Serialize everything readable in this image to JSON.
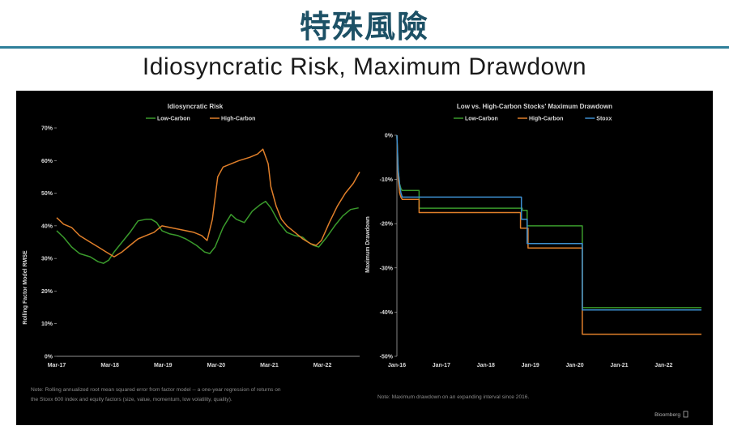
{
  "header": {
    "title": "特殊風險",
    "subtitle": "Idiosyncratic Risk, Maximum Drawdown"
  },
  "footer": {
    "note_left_line1": "Note: Rolling annualized root mean squared error from factor model -- a one-year regression of returns on",
    "note_left_line2": "the Stoxx 600 index and equity factors (size, value, momentum, low volatility, quality).",
    "note_right": "Note: Maximum drawdown on an expanding interval since 2016.",
    "source": "Bloomberg"
  },
  "colors": {
    "low_carbon": "#3a9a2c",
    "high_carbon": "#e07f2a",
    "stoxx": "#3d8fd0",
    "background": "#000000",
    "text": "#d9d9d9"
  },
  "chart_data": [
    {
      "type": "line",
      "title": "Idiosyncratic Risk",
      "ylabel": "Rolling Factor Model RMSE",
      "xlabel": "",
      "ylim": [
        0,
        70
      ],
      "xlim": [
        2017.17,
        2022.87
      ],
      "y_ticks": [
        "0%",
        "10%",
        "20%",
        "30%",
        "40%",
        "50%",
        "60%",
        "70%"
      ],
      "x_ticks": [
        {
          "label": "Mar-17",
          "x": 2017.17
        },
        {
          "label": "Mar-18",
          "x": 2018.17
        },
        {
          "label": "Mar-19",
          "x": 2019.17
        },
        {
          "label": "Mar-20",
          "x": 2020.17
        },
        {
          "label": "Mar-21",
          "x": 2021.17
        },
        {
          "label": "Mar-22",
          "x": 2022.17
        }
      ],
      "legend_position": "top-center",
      "grid": false,
      "series": [
        {
          "name": "Low-Carbon",
          "color_key": "low_carbon",
          "x": [
            2017.17,
            2017.3,
            2017.45,
            2017.6,
            2017.8,
            2017.95,
            2018.05,
            2018.15,
            2018.25,
            2018.4,
            2018.55,
            2018.7,
            2018.85,
            2018.95,
            2019.05,
            2019.15,
            2019.3,
            2019.45,
            2019.6,
            2019.8,
            2019.95,
            2020.05,
            2020.15,
            2020.3,
            2020.45,
            2020.55,
            2020.7,
            2020.85,
            2021.0,
            2021.1,
            2021.2,
            2021.35,
            2021.5,
            2021.65,
            2021.8,
            2021.9,
            2022.0,
            2022.1,
            2022.25,
            2022.4,
            2022.55,
            2022.7,
            2022.85
          ],
          "y": [
            38.5,
            36.5,
            33.5,
            31.5,
            30.5,
            29,
            28.5,
            29.5,
            32,
            35,
            38,
            41.5,
            42,
            42,
            41,
            38.5,
            37.5,
            37,
            36,
            34,
            32,
            31.5,
            33.5,
            39.5,
            43.5,
            42,
            41,
            44.5,
            46.5,
            47.5,
            45.5,
            41,
            38,
            37,
            36.5,
            35,
            34,
            33.5,
            36.5,
            40,
            43,
            45,
            45.5
          ]
        },
        {
          "name": "High-Carbon",
          "color_key": "high_carbon",
          "x": [
            2017.17,
            2017.3,
            2017.45,
            2017.6,
            2017.8,
            2017.95,
            2018.1,
            2018.25,
            2018.4,
            2018.55,
            2018.7,
            2018.85,
            2019.0,
            2019.15,
            2019.3,
            2019.45,
            2019.6,
            2019.75,
            2019.9,
            2020.0,
            2020.1,
            2020.2,
            2020.3,
            2020.45,
            2020.6,
            2020.8,
            2020.95,
            2021.05,
            2021.15,
            2021.2,
            2021.3,
            2021.4,
            2021.5,
            2021.65,
            2021.8,
            2021.95,
            2022.05,
            2022.15,
            2022.3,
            2022.45,
            2022.6,
            2022.75,
            2022.87
          ],
          "y": [
            42.5,
            40.5,
            39.5,
            37,
            35,
            33.5,
            32,
            30.5,
            32,
            34,
            36,
            37,
            38,
            40,
            39.5,
            39,
            38.5,
            38,
            37,
            35.5,
            42,
            55,
            58,
            59,
            60,
            61,
            62,
            63.5,
            59,
            52,
            46,
            42,
            40,
            38,
            36,
            34.5,
            34,
            35.5,
            41,
            46,
            50,
            53,
            56.5
          ]
        }
      ]
    },
    {
      "type": "line",
      "title": "Low vs. High-Carbon Stocks' Maximum Drawdown",
      "ylabel": "Maximum Drawdown",
      "xlabel": "",
      "ylim": [
        -50,
        0
      ],
      "xlim": [
        2016.0,
        2022.85
      ],
      "y_ticks": [
        "0%",
        "-10%",
        "-20%",
        "-30%",
        "-40%",
        "-50%"
      ],
      "x_ticks": [
        {
          "label": "Jan-16",
          "x": 2016.0
        },
        {
          "label": "Jan-17",
          "x": 2017.0
        },
        {
          "label": "Jan-18",
          "x": 2018.0
        },
        {
          "label": "Jan-19",
          "x": 2019.0
        },
        {
          "label": "Jan-20",
          "x": 2020.0
        },
        {
          "label": "Jan-21",
          "x": 2021.0
        },
        {
          "label": "Jan-22",
          "x": 2022.0
        }
      ],
      "legend_position": "top-center",
      "grid": false,
      "series": [
        {
          "name": "Low-Carbon",
          "color_key": "low_carbon",
          "x": [
            2016.0,
            2016.03,
            2016.06,
            2016.09,
            2016.12,
            2016.5,
            2016.5,
            2018.82,
            2018.82,
            2018.93,
            2018.93,
            2020.17,
            2020.17,
            2022.85
          ],
          "y": [
            0,
            -8,
            -11,
            -12,
            -12.5,
            -12.5,
            -16.5,
            -16.5,
            -17,
            -17,
            -20.5,
            -20.5,
            -39,
            -39
          ]
        },
        {
          "name": "High-Carbon",
          "color_key": "high_carbon",
          "x": [
            2016.0,
            2016.03,
            2016.06,
            2016.09,
            2016.12,
            2016.5,
            2016.5,
            2018.78,
            2018.78,
            2018.95,
            2018.95,
            2020.17,
            2020.17,
            2022.85
          ],
          "y": [
            0,
            -10,
            -13,
            -14,
            -14.5,
            -14.5,
            -17.5,
            -17.5,
            -21,
            -21,
            -25.5,
            -25.5,
            -45,
            -45
          ]
        },
        {
          "name": "Stoxx",
          "color_key": "stoxx",
          "x": [
            2016.0,
            2016.03,
            2016.06,
            2016.09,
            2016.12,
            2018.8,
            2018.8,
            2018.93,
            2018.93,
            2020.17,
            2020.17,
            2022.85
          ],
          "y": [
            0,
            -8,
            -11,
            -13,
            -14,
            -14,
            -19,
            -19,
            -24.5,
            -24.5,
            -39.5,
            -39.5
          ]
        }
      ]
    }
  ]
}
